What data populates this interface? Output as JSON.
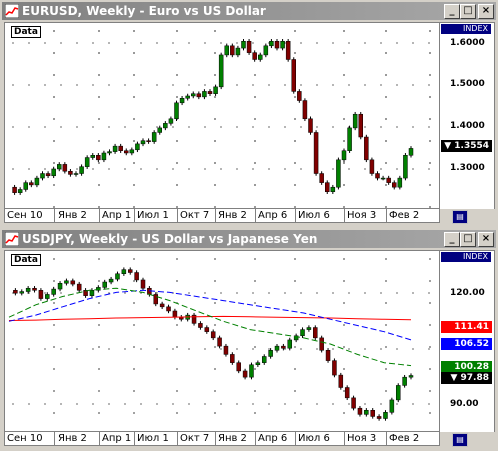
{
  "windows": [
    {
      "title": "EURUSD, Weekly - Euro vs US Dollar",
      "data_label": "Data",
      "index_label": "INDEX",
      "y_ticks": [
        "1.6000",
        "1.5000",
        "1.4000",
        "1.3000"
      ],
      "last_tag": "1.3554",
      "x_labels": [
        "Сен 10",
        "Янв 2",
        "Апр 1",
        "Июл 1",
        "Окт 7",
        "Янв 2",
        "Апр 6",
        "Июл 6",
        "Ноя 3",
        "Фев 2"
      ]
    },
    {
      "title": "USDJPY, Weekly - US Dollar vs Japanese Yen",
      "data_label": "Data",
      "index_label": "INDEX",
      "y_ticks": [
        "120.00",
        "110.00",
        "100.00",
        "90.00"
      ],
      "tags": [
        {
          "text": "111.41",
          "color": "#ff0000"
        },
        {
          "text": "106.52",
          "color": "#0000ff"
        },
        {
          "text": "100.28",
          "color": "#008000"
        },
        {
          "text": "97.88",
          "color": "#000000"
        }
      ],
      "x_labels": [
        "Сен 10",
        "Янв 2",
        "Апр 1",
        "Июл 1",
        "Окт 7",
        "Янв 2",
        "Апр 6",
        "Июл 6",
        "Ноя 3",
        "Фев 2"
      ]
    }
  ],
  "window_buttons": {
    "minimize": "_",
    "maximize": "□",
    "close": "×"
  },
  "chart_data": [
    {
      "type": "line",
      "series": [
        {
          "values": [
            1.27,
            1.258,
            1.265,
            1.28,
            1.275,
            1.29,
            1.3,
            1.295,
            1.31,
            1.32,
            1.305,
            1.298,
            1.3,
            1.315,
            1.335,
            1.34,
            1.33,
            1.345,
            1.348,
            1.36,
            1.35,
            1.345,
            1.352,
            1.365,
            1.372,
            1.37,
            1.39,
            1.4,
            1.41,
            1.42,
            1.455,
            1.465,
            1.47,
            1.475,
            1.468,
            1.48,
            1.475,
            1.49,
            1.56,
            1.58,
            1.56,
            1.575,
            1.59,
            1.565,
            1.55,
            1.56,
            1.58,
            1.59,
            1.575,
            1.59,
            1.55,
            1.48,
            1.46,
            1.42,
            1.39,
            1.3,
            1.28,
            1.26,
            1.27,
            1.33,
            1.35,
            1.4,
            1.43,
            1.38,
            1.33,
            1.3,
            1.29,
            1.29,
            1.28,
            1.27,
            1.29,
            1.34,
            1.355
          ]
        }
      ],
      "ylim": [
        1.22,
        1.63
      ]
    },
    {
      "type": "line",
      "series": [
        {
          "values": [
            118.5,
            117.8,
            118.2,
            119.0,
            118.5,
            116.5,
            117.5,
            118.8,
            120.2,
            120.8,
            120.0,
            118.5,
            117.2,
            118.5,
            119.2,
            120.5,
            121.2,
            122.5,
            123.5,
            122.8,
            121.0,
            119.0,
            117.5,
            115.2,
            114.5,
            113.5,
            112.0,
            111.5,
            112.5,
            110.5,
            109.5,
            108.5,
            107.0,
            105.0,
            103.0,
            101.0,
            99.0,
            97.5,
            100.5,
            101.0,
            102.5,
            104.0,
            105.0,
            104.5,
            106.5,
            107.5,
            109.0,
            109.5,
            107.0,
            104.0,
            101.5,
            98.0,
            95.0,
            92.5,
            90.0,
            88.5,
            89.5,
            88.0,
            87.5,
            89.0,
            92.0,
            95.5,
            97.5,
            97.9
          ]
        },
        {
          "name": "111.41",
          "values": [
            111.2,
            111.3,
            111.5,
            111.6,
            111.8,
            111.9,
            112.0,
            112.1,
            112.2,
            112.1,
            112.0,
            111.9,
            111.8,
            111.6,
            111.5,
            111.4
          ]
        },
        {
          "name": "106.52",
          "values": [
            111.0,
            112.5,
            114.5,
            116.5,
            118.0,
            118.5,
            118.0,
            117.0,
            116.0,
            115.0,
            114.0,
            113.0,
            111.5,
            110.0,
            108.5,
            106.5
          ]
        },
        {
          "name": "100.28",
          "values": [
            112.0,
            115.0,
            117.0,
            118.5,
            119.0,
            118.0,
            116.0,
            113.5,
            111.0,
            109.0,
            108.0,
            107.0,
            105.5,
            103.0,
            101.0,
            100.3
          ]
        }
      ],
      "ylim": [
        84,
        128
      ]
    }
  ]
}
